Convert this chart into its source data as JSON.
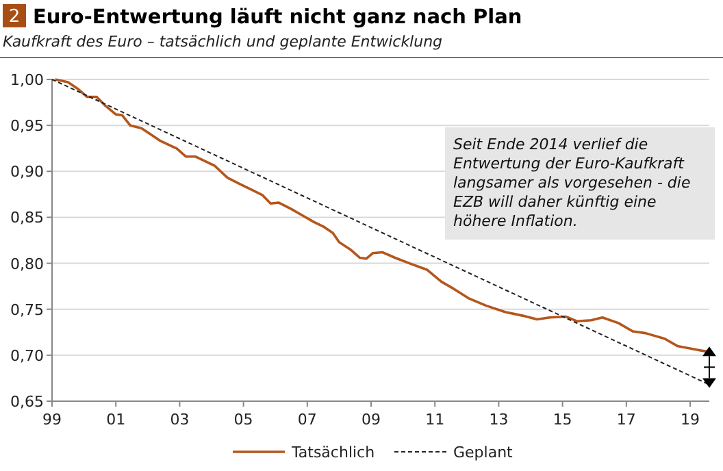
{
  "chart_data": {
    "type": "line",
    "title": "Euro-Entwertung läuft nicht ganz nach Plan",
    "subtitle": "Kaufkraft des Euro – tatsächlich und geplante Entwicklung",
    "annotations": [
      "2",
      "Seit Ende 2014 verlief die Entwertung der Euro-Kaufkraft langsamer als vorgesehen - die EZB will daher künftig eine höhere Inflation."
    ],
    "xlim": [
      1999,
      2019.6
    ],
    "xticks": [
      {
        "value": 1999,
        "label": "99"
      },
      {
        "value": 2001,
        "label": "01"
      },
      {
        "value": 2003,
        "label": "03"
      },
      {
        "value": 2005,
        "label": "05"
      },
      {
        "value": 2007,
        "label": "07"
      },
      {
        "value": 2009,
        "label": "09"
      },
      {
        "value": 2011,
        "label": "11"
      },
      {
        "value": 2013,
        "label": "13"
      },
      {
        "value": 2015,
        "label": "15"
      },
      {
        "value": 2017,
        "label": "17"
      },
      {
        "value": 2019,
        "label": "19"
      }
    ],
    "ylim": [
      0.65,
      1.0
    ],
    "yticks": [
      {
        "value": 0.65,
        "label": "0,65"
      },
      {
        "value": 0.7,
        "label": "0,70"
      },
      {
        "value": 0.75,
        "label": "0,75"
      },
      {
        "value": 0.8,
        "label": "0,80"
      },
      {
        "value": 0.85,
        "label": "0,85"
      },
      {
        "value": 0.9,
        "label": "0,90"
      },
      {
        "value": 0.95,
        "label": "0,95"
      },
      {
        "value": 1.0,
        "label": "1,00"
      }
    ],
    "grid": "y",
    "legend": "bottom",
    "series": [
      {
        "name": "Tatsächlich",
        "color": "#b5561c",
        "line_style": "solid",
        "x": [
          1999.1,
          1999.5,
          1999.8,
          2000.1,
          2000.4,
          2000.65,
          2001.0,
          2001.2,
          2001.45,
          2001.8,
          2002.1,
          2002.4,
          2002.9,
          2003.2,
          2003.5,
          2004.1,
          2004.5,
          2004.9,
          2005.2,
          2005.6,
          2005.85,
          2006.1,
          2006.5,
          2006.85,
          2007.2,
          2007.5,
          2007.8,
          2008.0,
          2008.35,
          2008.65,
          2008.85,
          2009.05,
          2009.35,
          2009.75,
          2010.2,
          2010.75,
          2011.2,
          2011.6,
          2012.05,
          2012.6,
          2013.2,
          2013.75,
          2014.2,
          2014.6,
          2015.1,
          2015.45,
          2015.9,
          2016.25,
          2016.75,
          2017.2,
          2017.6,
          2018.2,
          2018.6,
          2019.05,
          2019.35,
          2019.55
        ],
        "values": [
          1.0,
          0.997,
          0.99,
          0.981,
          0.981,
          0.972,
          0.962,
          0.961,
          0.95,
          0.947,
          0.94,
          0.933,
          0.925,
          0.916,
          0.916,
          0.906,
          0.893,
          0.886,
          0.881,
          0.874,
          0.865,
          0.866,
          0.859,
          0.852,
          0.845,
          0.84,
          0.833,
          0.823,
          0.815,
          0.806,
          0.805,
          0.811,
          0.812,
          0.806,
          0.8,
          0.793,
          0.78,
          0.772,
          0.762,
          0.754,
          0.747,
          0.743,
          0.739,
          0.741,
          0.742,
          0.737,
          0.738,
          0.741,
          0.735,
          0.726,
          0.724,
          0.718,
          0.71,
          0.707,
          0.705,
          0.704
        ]
      },
      {
        "name": "Geplant",
        "color": "#222222",
        "line_style": "dashed",
        "x": [
          1999,
          2019.6
        ],
        "values": [
          1.0,
          0.668
        ]
      }
    ]
  }
}
